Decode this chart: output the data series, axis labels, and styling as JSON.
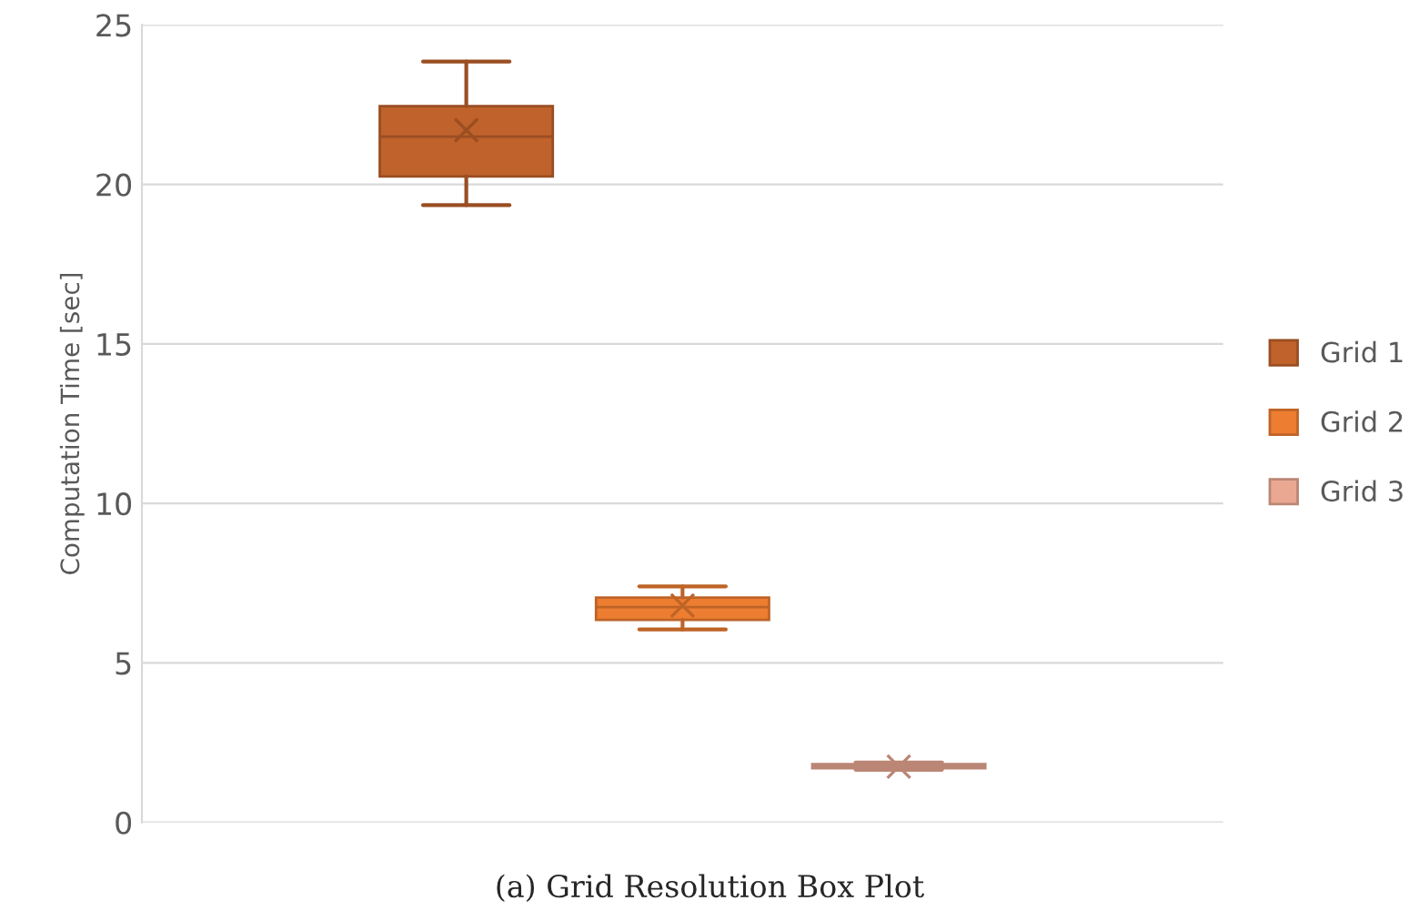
{
  "chart_data": {
    "type": "box",
    "ylabel": "Computation Time [sec]",
    "categories": [
      null
    ],
    "ylim": [
      0,
      25
    ],
    "yticks": [
      0,
      5,
      10,
      15,
      20,
      25
    ],
    "grid": "y",
    "legend": "right",
    "tick_labels": "y",
    "marker": "cross",
    "annotations": [
      "(a) Grid Resolution Box Plot"
    ],
    "series": [
      {
        "name": "Grid 1",
        "color": "#c0622b",
        "boxes": [
          {
            "low": 19.35,
            "q1": 20.25,
            "median": 21.5,
            "q3": 22.45,
            "high": 23.85,
            "mean": 21.7
          }
        ]
      },
      {
        "name": "Grid 2",
        "color": "#ed7d31",
        "boxes": [
          {
            "low": 6.05,
            "q1": 6.35,
            "median": 6.75,
            "q3": 7.05,
            "high": 7.4,
            "mean": 6.8
          }
        ]
      },
      {
        "name": "Grid 3",
        "color": "#eaa892",
        "boxes": [
          {
            "low": 1.65,
            "q1": 1.7,
            "median": 1.77,
            "q3": 1.83,
            "high": 1.88,
            "mean": 1.75
          }
        ]
      }
    ]
  }
}
